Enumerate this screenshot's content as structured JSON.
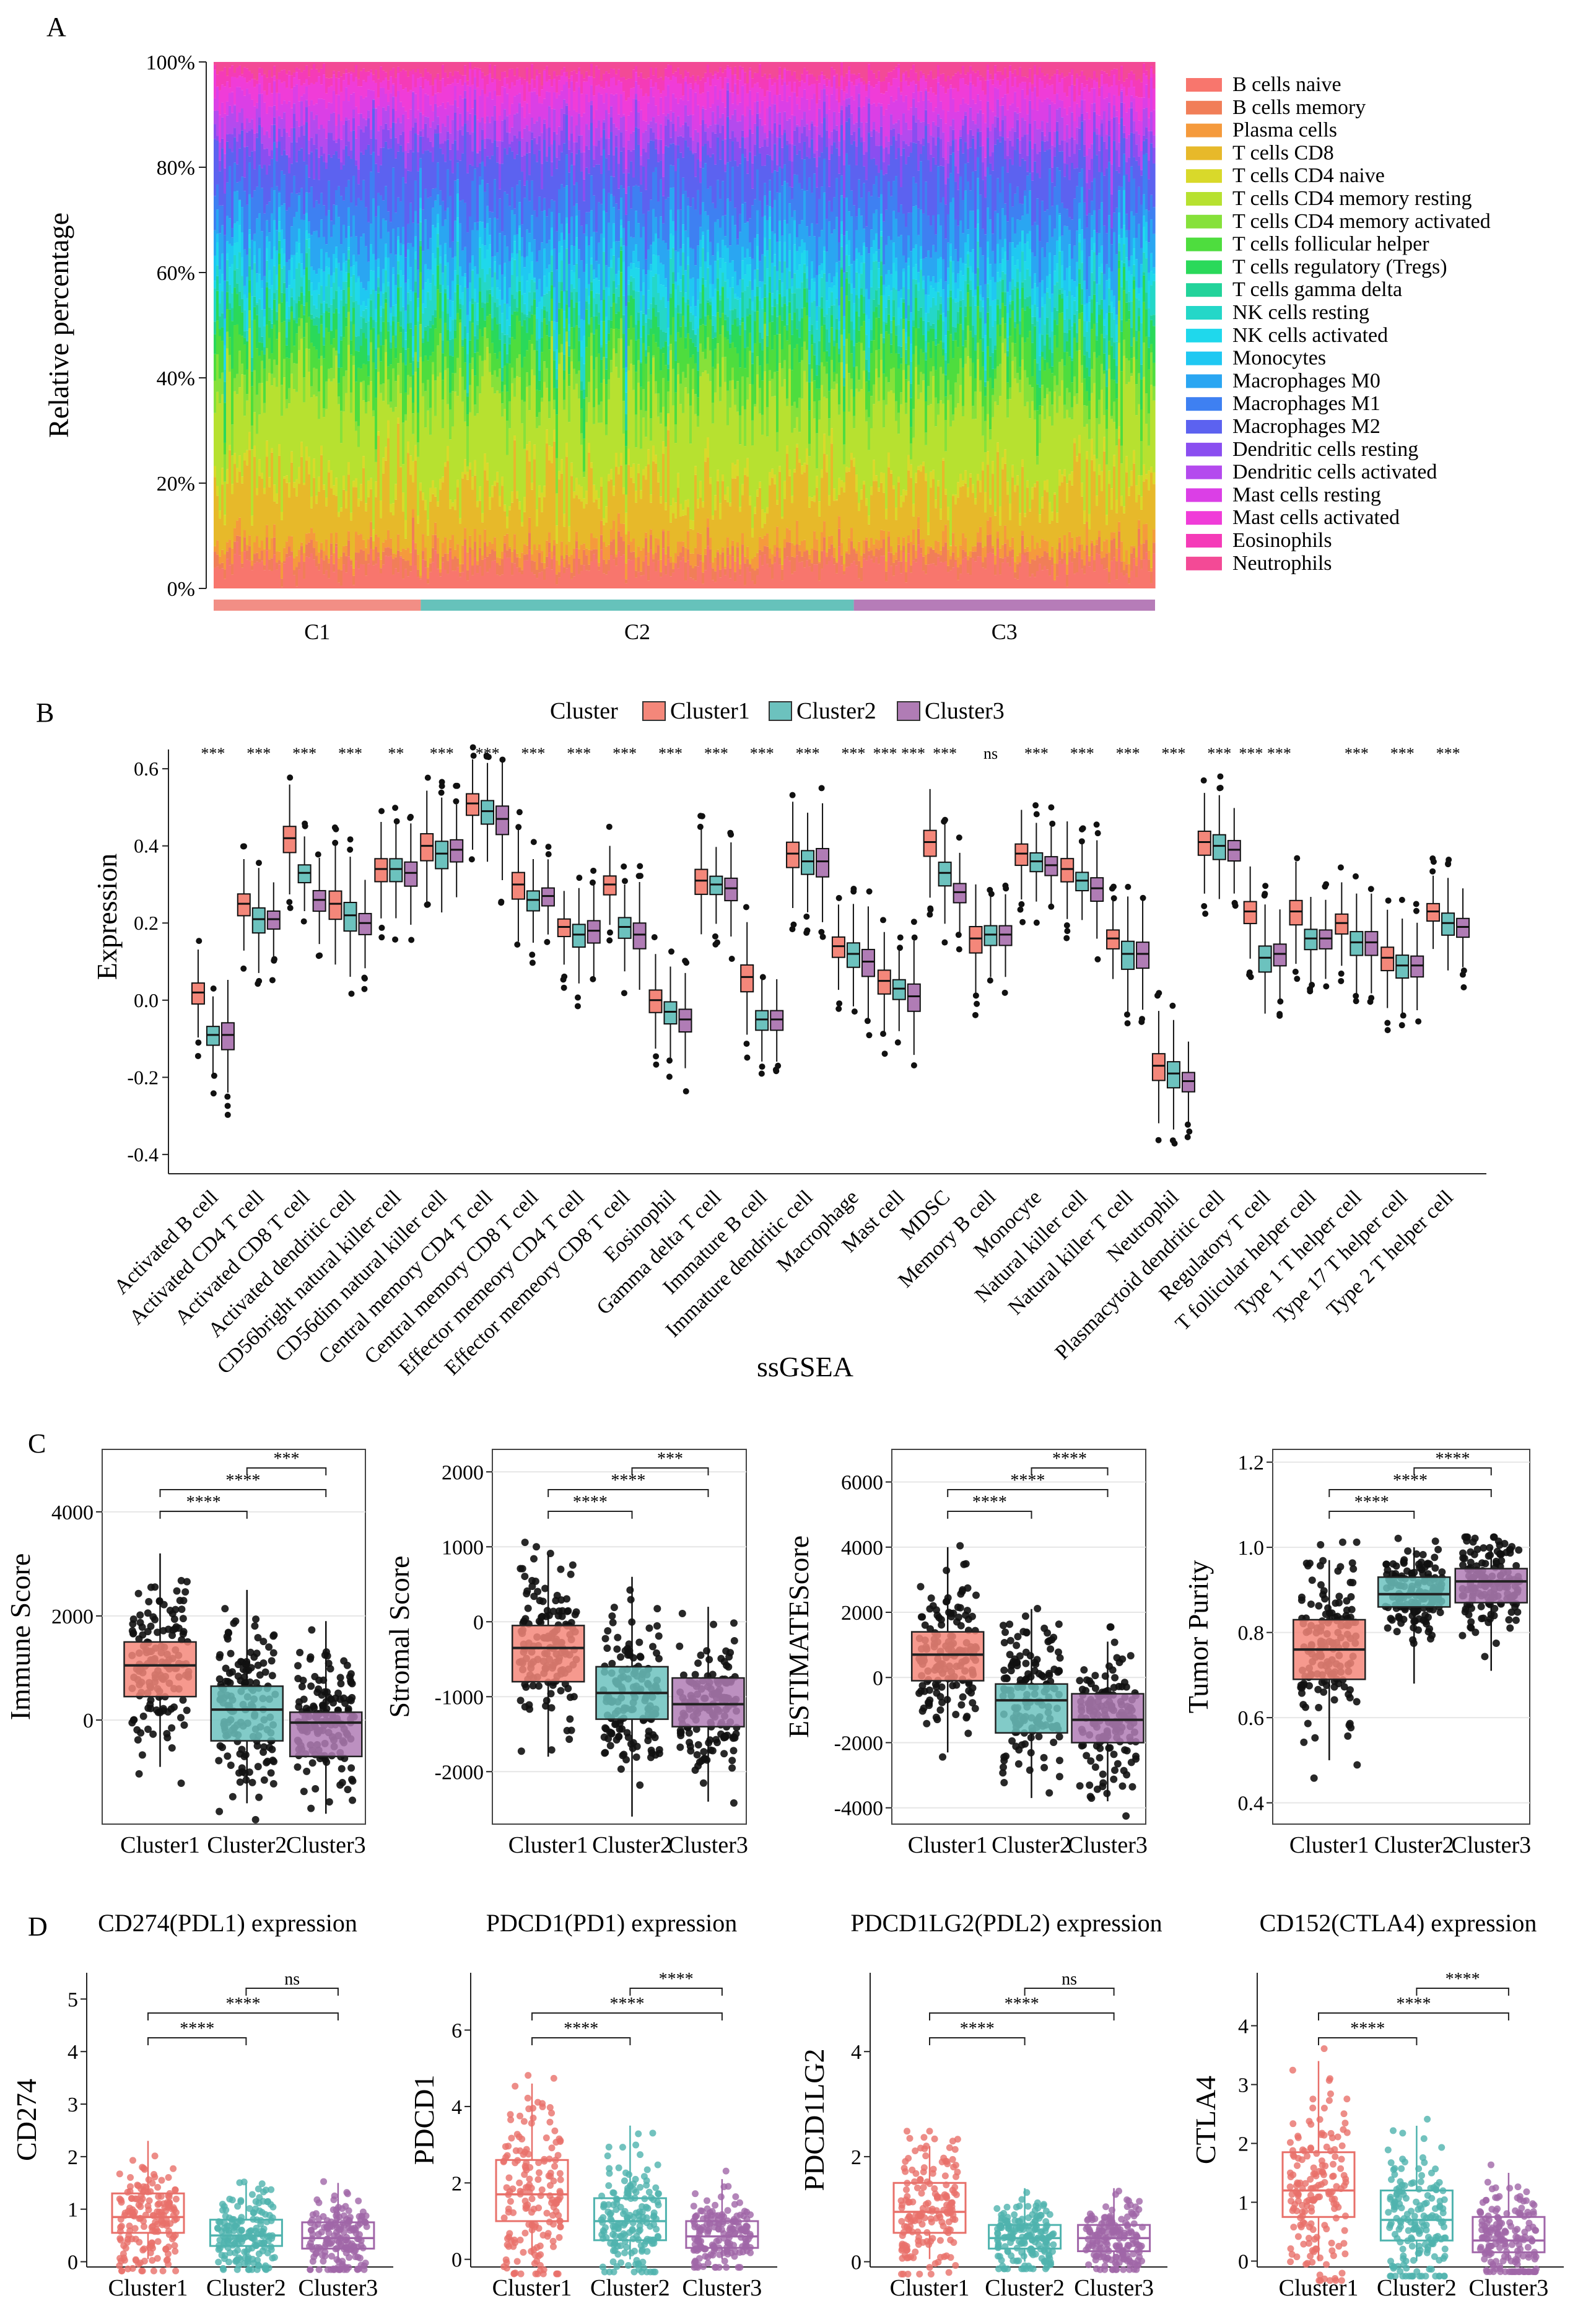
{
  "colors": {
    "cluster1": "#F4877A",
    "cluster2": "#6CC2BE",
    "cluster3": "#B07CB5",
    "c1_dark": "#E8706A",
    "c2_dark": "#4FB3AE",
    "c3_dark": "#A066A8",
    "ann_c1": "#F28E85",
    "ann_c2": "#66C2BB",
    "ann_c3": "#B67CB8",
    "cell_palette": [
      "#F8766D",
      "#F17E58",
      "#F59A3C",
      "#E7B92A",
      "#D9D92A",
      "#B7E130",
      "#86E13A",
      "#4EDD3E",
      "#2AD95A",
      "#22D39A",
      "#24D7C8",
      "#1FD8EC",
      "#1FC8F2",
      "#2AA6F2",
      "#3E80F2",
      "#5C62F0",
      "#8A4EF0",
      "#B44AEE",
      "#DB3FE6",
      "#F03CD8",
      "#F53BB8",
      "#F34A96"
    ],
    "panel_border": "#444444",
    "grid": "#E6E6E6"
  },
  "panels": {
    "A": "A",
    "B": "B",
    "C": "C",
    "D": "D"
  },
  "chart_data": [
    {
      "id": "A",
      "type": "stacked-bar",
      "title": "",
      "ylabel": "Relative percentage",
      "ylim": [
        0,
        100
      ],
      "yticks": [
        "0%",
        "20%",
        "40%",
        "60%",
        "80%",
        "100%"
      ],
      "legend": [
        "B cells naive",
        "B cells memory",
        "Plasma cells",
        "T cells CD8",
        "T cells CD4 naive",
        "T cells CD4 memory resting",
        "T cells CD4 memory activated",
        "T cells follicular helper",
        "T cells regulatory (Tregs)",
        "T cells gamma delta",
        "NK cells resting",
        "NK cells activated",
        "Monocytes",
        "Macrophages M0",
        "Macrophages M1",
        "Macrophages M2",
        "Dendritic cells resting",
        "Dendritic cells activated",
        "Mast cells resting",
        "Mast cells activated",
        "Eosinophils",
        "Neutrophils"
      ],
      "groups": [
        {
          "name": "C1",
          "share": 0.22
        },
        {
          "name": "C2",
          "share": 0.46
        },
        {
          "name": "C3",
          "share": 0.32
        }
      ],
      "approx_mean_percent": [
        4,
        2,
        2,
        10,
        2,
        14,
        4,
        6,
        4,
        2,
        4,
        3,
        3,
        6,
        6,
        7,
        3,
        3,
        4,
        3,
        2,
        2
      ]
    },
    {
      "id": "B",
      "type": "grouped-box",
      "legend_title": "Cluster",
      "legend": [
        "Cluster1",
        "Cluster2",
        "Cluster3"
      ],
      "xlabel": "ssGSEA",
      "ylabel": "Expression",
      "ylim": [
        -0.45,
        0.65
      ],
      "yticks": [
        "0.6",
        "0.4",
        "0.2",
        "0.0",
        "-0.2",
        "-0.4"
      ],
      "categories": [
        "Activated B cell",
        "Activated CD4 T cell",
        "Activated CD8 T cell",
        "Activated dendritic cell",
        "CD56bright natural killer cell",
        "CD56dim natural killer cell",
        "Central memory CD4 T cell",
        "Central memory CD8 T cell",
        "Effector memeory CD4 T cell",
        "Effector memeory CD8 T cell",
        "Eosinophil",
        "Gamma delta T cell",
        "Immature  B cell",
        "Immature dendritic cell",
        "Macrophage",
        "Mast cell",
        "MDSC",
        "Memory B cell",
        "Monocyte",
        "Natural killer cell",
        "Natural killer T cell",
        "Neutrophil",
        "Plasmacytoid dendritic cell",
        "Regulatory T cell",
        "T follicular helper cell",
        "Type 1 T helper cell",
        "Type 17 T helper cell",
        "Type 2 T helper cell"
      ],
      "significance": [
        "***",
        "***",
        "***",
        "***",
        "**",
        "***",
        "***",
        "***",
        "***",
        "***",
        "***",
        "***",
        "***",
        "***",
        "***",
        "*** ***",
        "***",
        "ns",
        "***",
        "***",
        "***",
        "***",
        "***",
        "*** ***",
        "",
        "***",
        "***",
        "***"
      ],
      "medians": [
        [
          0.02,
          -0.09,
          -0.09
        ],
        [
          0.25,
          0.21,
          0.21
        ],
        [
          0.42,
          0.33,
          0.26
        ],
        [
          0.25,
          0.22,
          0.2
        ],
        [
          0.34,
          0.34,
          0.33
        ],
        [
          0.4,
          0.38,
          0.39
        ],
        [
          0.51,
          0.49,
          0.47
        ],
        [
          0.3,
          0.26,
          0.27
        ],
        [
          0.19,
          0.17,
          0.18
        ],
        [
          0.3,
          0.19,
          0.17
        ],
        [
          0.0,
          -0.03,
          -0.05
        ],
        [
          0.31,
          0.3,
          0.29
        ],
        [
          0.06,
          -0.05,
          -0.05
        ],
        [
          0.38,
          0.36,
          0.36
        ],
        [
          0.14,
          0.12,
          0.1
        ],
        [
          0.05,
          0.03,
          0.01
        ],
        [
          0.41,
          0.33,
          0.28
        ],
        [
          0.16,
          0.17,
          0.17
        ],
        [
          0.38,
          0.36,
          0.35
        ],
        [
          0.34,
          0.31,
          0.29
        ],
        [
          0.16,
          0.12,
          0.12
        ],
        [
          -0.17,
          -0.19,
          -0.21
        ],
        [
          0.41,
          0.4,
          0.39
        ],
        [
          0.23,
          0.11,
          0.12
        ],
        [
          0.23,
          0.16,
          0.16
        ],
        [
          0.2,
          0.15,
          0.15
        ],
        [
          0.11,
          0.09,
          0.09
        ],
        [
          0.23,
          0.2,
          0.19
        ]
      ]
    },
    {
      "id": "C1",
      "type": "box",
      "ylabel": "Immune Score",
      "categories": [
        "Cluster1",
        "Cluster2",
        "Cluster3"
      ],
      "ylim": [
        -2000,
        5200
      ],
      "yticks": [
        "0",
        "2000",
        "4000"
      ],
      "yticks_values": [
        0,
        2000,
        4000
      ],
      "boxes": [
        {
          "q1": 450,
          "median": 1050,
          "q3": 1500,
          "lo": -900,
          "hi": 3200
        },
        {
          "q1": -400,
          "median": 200,
          "q3": 650,
          "lo": -1600,
          "hi": 2500
        },
        {
          "q1": -700,
          "median": -50,
          "q3": 150,
          "lo": -1800,
          "hi": 1900
        }
      ],
      "comparisons": [
        {
          "a": 1,
          "b": 2,
          "label": "****"
        },
        {
          "a": 1,
          "b": 3,
          "label": "****"
        },
        {
          "a": 2,
          "b": 3,
          "label": "***"
        }
      ]
    },
    {
      "id": "C2",
      "type": "box",
      "ylabel": "Stromal Score",
      "categories": [
        "Cluster1",
        "Cluster2",
        "Cluster3"
      ],
      "ylim": [
        -2700,
        2300
      ],
      "yticks": [
        "-2000",
        "-1000",
        "0",
        "1000",
        "2000"
      ],
      "yticks_values": [
        -2000,
        -1000,
        0,
        1000,
        2000
      ],
      "boxes": [
        {
          "q1": -800,
          "median": -350,
          "q3": -50,
          "lo": -1800,
          "hi": 900
        },
        {
          "q1": -1300,
          "median": -950,
          "q3": -600,
          "lo": -2600,
          "hi": 600
        },
        {
          "q1": -1400,
          "median": -1100,
          "q3": -750,
          "lo": -2400,
          "hi": 200
        }
      ],
      "comparisons": [
        {
          "a": 1,
          "b": 2,
          "label": "****"
        },
        {
          "a": 1,
          "b": 3,
          "label": "****"
        },
        {
          "a": 2,
          "b": 3,
          "label": "***"
        }
      ]
    },
    {
      "id": "C3",
      "type": "box",
      "ylabel": "ESTIMATEScore",
      "categories": [
        "Cluster1",
        "Cluster2",
        "Cluster3"
      ],
      "ylim": [
        -4500,
        7000
      ],
      "yticks": [
        "-4000",
        "-2000",
        "0",
        "2000",
        "4000",
        "6000"
      ],
      "yticks_values": [
        -4000,
        -2000,
        0,
        2000,
        4000,
        6000
      ],
      "boxes": [
        {
          "q1": -100,
          "median": 700,
          "q3": 1400,
          "lo": -2300,
          "hi": 4000
        },
        {
          "q1": -1700,
          "median": -700,
          "q3": -200,
          "lo": -3700,
          "hi": 2100
        },
        {
          "q1": -2000,
          "median": -1300,
          "q3": -500,
          "lo": -3800,
          "hi": 1100
        }
      ],
      "comparisons": [
        {
          "a": 1,
          "b": 2,
          "label": "****"
        },
        {
          "a": 1,
          "b": 3,
          "label": "****"
        },
        {
          "a": 2,
          "b": 3,
          "label": "****"
        }
      ]
    },
    {
      "id": "C4",
      "type": "box",
      "ylabel": "Tumor Purity",
      "categories": [
        "Cluster1",
        "Cluster2",
        "Cluster3"
      ],
      "ylim": [
        0.35,
        1.23
      ],
      "yticks": [
        "0.4",
        "0.6",
        "0.8",
        "1.0",
        "1.2"
      ],
      "yticks_values": [
        0.4,
        0.6,
        0.8,
        1.0,
        1.2
      ],
      "boxes": [
        {
          "q1": 0.69,
          "median": 0.76,
          "q3": 0.83,
          "lo": 0.5,
          "hi": 0.97
        },
        {
          "q1": 0.86,
          "median": 0.89,
          "q3": 0.93,
          "lo": 0.68,
          "hi": 1.0
        },
        {
          "q1": 0.87,
          "median": 0.92,
          "q3": 0.95,
          "lo": 0.71,
          "hi": 1.0
        }
      ],
      "comparisons": [
        {
          "a": 1,
          "b": 2,
          "label": "****"
        },
        {
          "a": 1,
          "b": 3,
          "label": "****"
        },
        {
          "a": 2,
          "b": 3,
          "label": "****"
        }
      ]
    },
    {
      "id": "D1",
      "type": "box",
      "title": "CD274(PDL1) expression",
      "ylabel": "CD274",
      "categories": [
        "Cluster1",
        "Cluster2",
        "Cluster3"
      ],
      "ylim": [
        -0.1,
        5.5
      ],
      "yticks": [
        "0",
        "1",
        "2",
        "3",
        "4",
        "5"
      ],
      "yticks_values": [
        0,
        1,
        2,
        3,
        4,
        5
      ],
      "boxes": [
        {
          "q1": 0.55,
          "median": 0.85,
          "q3": 1.3,
          "lo": 0.05,
          "hi": 2.3
        },
        {
          "q1": 0.3,
          "median": 0.5,
          "q3": 0.8,
          "lo": 0.0,
          "hi": 1.5
        },
        {
          "q1": 0.25,
          "median": 0.45,
          "q3": 0.75,
          "lo": 0.0,
          "hi": 1.5
        }
      ],
      "comparisons": [
        {
          "a": 1,
          "b": 2,
          "label": "****"
        },
        {
          "a": 1,
          "b": 3,
          "label": "****"
        },
        {
          "a": 2,
          "b": 3,
          "label": "ns"
        }
      ]
    },
    {
      "id": "D2",
      "type": "box",
      "title": "PDCD1(PD1) expression",
      "ylabel": "PDCD1",
      "categories": [
        "Cluster1",
        "Cluster2",
        "Cluster3"
      ],
      "ylim": [
        -0.2,
        7.5
      ],
      "yticks": [
        "0",
        "2",
        "4",
        "6"
      ],
      "yticks_values": [
        0,
        2,
        4,
        6
      ],
      "boxes": [
        {
          "q1": 1.0,
          "median": 1.7,
          "q3": 2.6,
          "lo": 0.1,
          "hi": 4.6
        },
        {
          "q1": 0.5,
          "median": 1.0,
          "q3": 1.6,
          "lo": 0.0,
          "hi": 3.5
        },
        {
          "q1": 0.3,
          "median": 0.6,
          "q3": 1.0,
          "lo": 0.0,
          "hi": 2.1
        }
      ],
      "comparisons": [
        {
          "a": 1,
          "b": 2,
          "label": "****"
        },
        {
          "a": 1,
          "b": 3,
          "label": "****"
        },
        {
          "a": 2,
          "b": 3,
          "label": "****"
        }
      ]
    },
    {
      "id": "D3",
      "type": "box",
      "title": "PDCD1LG2(PDL2) expression",
      "ylabel": "PDCD1LG2",
      "categories": [
        "Cluster1",
        "Cluster2",
        "Cluster3"
      ],
      "ylim": [
        -0.1,
        5.5
      ],
      "yticks": [
        "0",
        "2",
        "4"
      ],
      "yticks_values": [
        0,
        2,
        4
      ],
      "boxes": [
        {
          "q1": 0.55,
          "median": 0.95,
          "q3": 1.5,
          "lo": 0.05,
          "hi": 2.2
        },
        {
          "q1": 0.25,
          "median": 0.45,
          "q3": 0.7,
          "lo": 0.0,
          "hi": 1.4
        },
        {
          "q1": 0.2,
          "median": 0.45,
          "q3": 0.7,
          "lo": 0.0,
          "hi": 1.4
        }
      ],
      "comparisons": [
        {
          "a": 1,
          "b": 2,
          "label": "****"
        },
        {
          "a": 1,
          "b": 3,
          "label": "****"
        },
        {
          "a": 2,
          "b": 3,
          "label": "ns"
        }
      ]
    },
    {
      "id": "D4",
      "type": "box",
      "title": "CD152(CTLA4) expression",
      "ylabel": "CTLA4",
      "categories": [
        "Cluster1",
        "Cluster2",
        "Cluster3"
      ],
      "ylim": [
        -0.1,
        4.9
      ],
      "yticks": [
        "0",
        "1",
        "2",
        "3",
        "4"
      ],
      "yticks_values": [
        0,
        1,
        2,
        3,
        4
      ],
      "boxes": [
        {
          "q1": 0.75,
          "median": 1.2,
          "q3": 1.85,
          "lo": 0.0,
          "hi": 3.4
        },
        {
          "q1": 0.35,
          "median": 0.7,
          "q3": 1.2,
          "lo": 0.0,
          "hi": 2.3
        },
        {
          "q1": 0.15,
          "median": 0.35,
          "q3": 0.75,
          "lo": 0.0,
          "hi": 1.5
        }
      ],
      "comparisons": [
        {
          "a": 1,
          "b": 2,
          "label": "****"
        },
        {
          "a": 1,
          "b": 3,
          "label": "****"
        },
        {
          "a": 2,
          "b": 3,
          "label": "****"
        }
      ]
    }
  ]
}
